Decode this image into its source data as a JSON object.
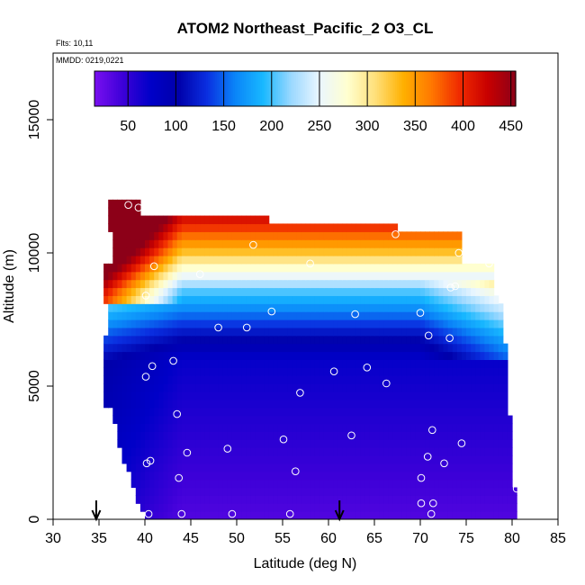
{
  "chart_data": {
    "type": "heatmap",
    "title": "ATOM2 Northeast_Pacific_2 O3_CL",
    "annotations": [
      "Flts: 10,11",
      "MMDD: 0219,0221"
    ],
    "xlabel": "Latitude (deg N)",
    "ylabel": "Altitude (m)",
    "xlim": [
      30,
      85
    ],
    "ylim": [
      0,
      17500
    ],
    "x_ticks": [
      30,
      35,
      40,
      45,
      50,
      55,
      60,
      65,
      70,
      75,
      80,
      85
    ],
    "y_ticks": [
      0,
      5000,
      10000,
      15000
    ],
    "colorbar": {
      "min": 15,
      "max": 455,
      "ticks": [
        50,
        100,
        150,
        200,
        250,
        300,
        350,
        400,
        450
      ],
      "colors": [
        "#7a10f0",
        "#3d00d8",
        "#0000c8",
        "#0000aa",
        "#0a2ee0",
        "#0a84f8",
        "#18b8ff",
        "#9ad8ff",
        "#eaf6ff",
        "#ffffd0",
        "#ffe07a",
        "#ffb000",
        "#ff7800",
        "#f02a00",
        "#c80000",
        "#8c0018"
      ]
    },
    "arrow_latitudes": [
      34.7,
      61.2
    ],
    "grid": false,
    "points": [
      [
        38.2,
        11800
      ],
      [
        39.3,
        11700
      ],
      [
        67.3,
        10700
      ],
      [
        51.8,
        10300
      ],
      [
        74.2,
        10000
      ],
      [
        41.0,
        9500
      ],
      [
        58.0,
        9600
      ],
      [
        77.5,
        9600
      ],
      [
        46.0,
        9200
      ],
      [
        73.3,
        8700
      ],
      [
        73.8,
        8750
      ],
      [
        40.1,
        8400
      ],
      [
        53.8,
        7800
      ],
      [
        70.0,
        7750
      ],
      [
        62.9,
        7700
      ],
      [
        48.0,
        7200
      ],
      [
        51.1,
        7200
      ],
      [
        70.9,
        6900
      ],
      [
        73.2,
        6800
      ],
      [
        43.1,
        5950
      ],
      [
        40.8,
        5750
      ],
      [
        64.2,
        5700
      ],
      [
        60.6,
        5550
      ],
      [
        40.1,
        5350
      ],
      [
        80.1,
        5350
      ],
      [
        66.3,
        5100
      ],
      [
        56.9,
        4750
      ],
      [
        34.8,
        4500
      ],
      [
        43.5,
        3950
      ],
      [
        71.3,
        3350
      ],
      [
        62.5,
        3150
      ],
      [
        55.1,
        3000
      ],
      [
        74.5,
        2850
      ],
      [
        49.0,
        2650
      ],
      [
        44.6,
        2500
      ],
      [
        70.8,
        2350
      ],
      [
        40.6,
        2200
      ],
      [
        40.2,
        2100
      ],
      [
        72.6,
        2100
      ],
      [
        56.4,
        1800
      ],
      [
        43.7,
        1550
      ],
      [
        70.1,
        1550
      ],
      [
        80.5,
        1150
      ],
      [
        70.1,
        600
      ],
      [
        71.4,
        600
      ],
      [
        40.4,
        200
      ],
      [
        44.0,
        200
      ],
      [
        49.5,
        200
      ],
      [
        55.8,
        200
      ],
      [
        71.2,
        200
      ]
    ]
  }
}
